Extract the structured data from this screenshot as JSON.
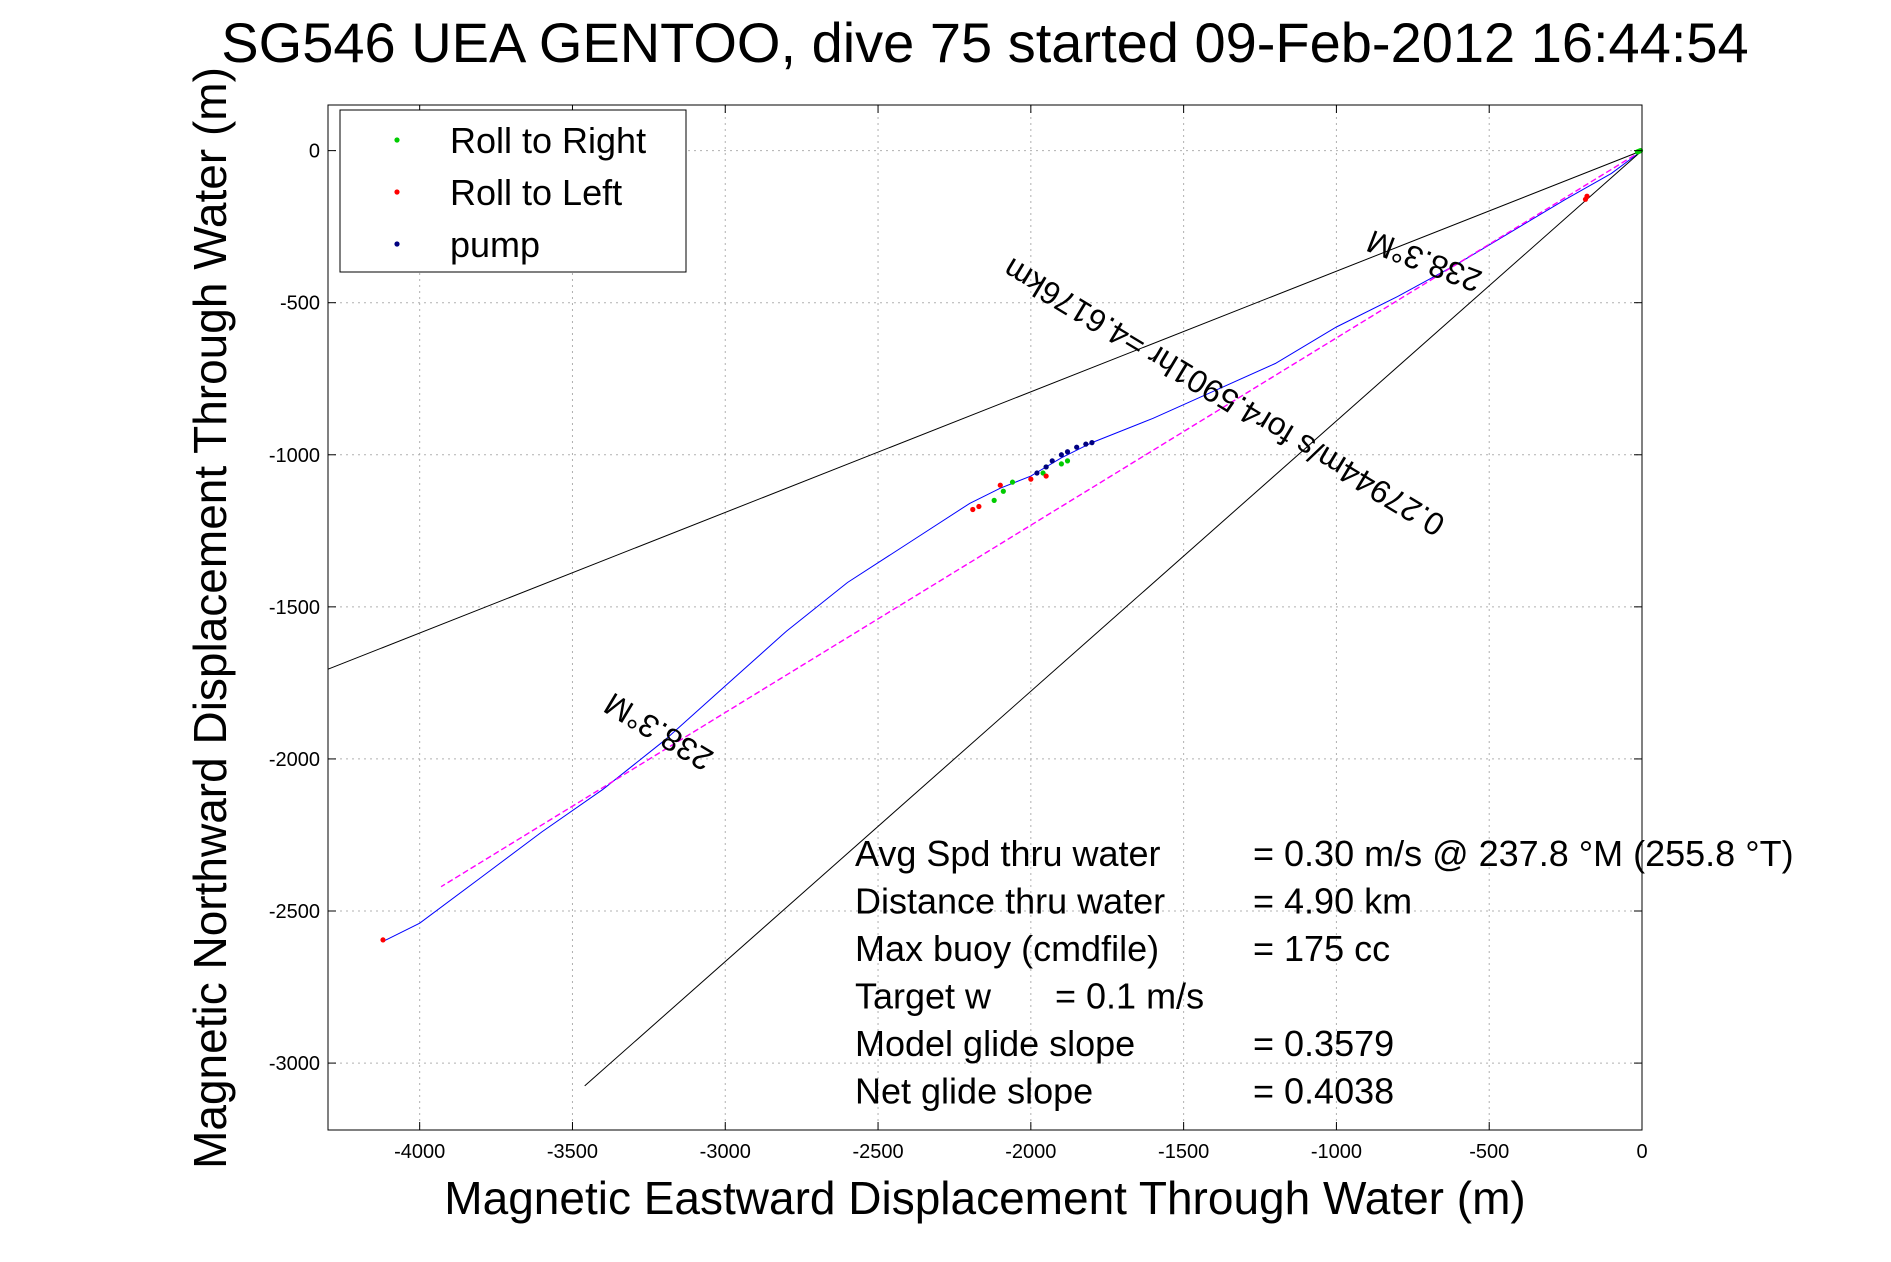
{
  "chart_data": {
    "type": "line",
    "title": "SG546 UEA GENTOO, dive 75 started 09-Feb-2012 16:44:54",
    "xlabel": "Magnetic Eastward Displacement Through Water (m)",
    "ylabel": "Magnetic Northward Displacement Through Water (m)",
    "xlim": [
      -4300,
      0
    ],
    "ylim": [
      -3220,
      150
    ],
    "xticks": [
      -4000,
      -3500,
      -3000,
      -2500,
      -2000,
      -1500,
      -1000,
      -500,
      0
    ],
    "yticks": [
      0,
      -500,
      -1000,
      -1500,
      -2000,
      -2500,
      -3000
    ],
    "xtick_labels": [
      "-4000",
      "-3500",
      "-3000",
      "-2500",
      "-2000",
      "-1500",
      "-1000",
      "-500",
      "0"
    ],
    "ytick_labels": [
      "0",
      "-500",
      "-1000",
      "-1500",
      "-2000",
      "-2500",
      "-3000"
    ],
    "grid": true,
    "legend": {
      "placement": "top-left",
      "entries": [
        {
          "label": "Roll to Right",
          "color": "#00cc00"
        },
        {
          "label": "Roll to Left",
          "color": "#ff0000"
        },
        {
          "label": "pump",
          "color": "#000080"
        }
      ]
    },
    "series": [
      {
        "key": "track",
        "style": "line",
        "color": "#0000ff",
        "x": [
          0,
          -100,
          -250,
          -400,
          -600,
          -800,
          -1000,
          -1200,
          -1400,
          -1600,
          -1800,
          -1900,
          -2000,
          -2100,
          -2200,
          -2400,
          -2600,
          -2800,
          -3000,
          -3200,
          -3400,
          -3600,
          -3800,
          -4000,
          -4120
        ],
        "y": [
          0,
          -75,
          -160,
          -250,
          -370,
          -480,
          -580,
          -700,
          -790,
          -880,
          -960,
          -1010,
          -1070,
          -1110,
          -1160,
          -1290,
          -1420,
          -1580,
          -1760,
          -1940,
          -2100,
          -2240,
          -2390,
          -2540,
          -2600
        ]
      },
      {
        "key": "mean-track",
        "style": "dashed",
        "color": "#ff00ff",
        "x": [
          0,
          -3930
        ],
        "y": [
          0,
          -2420
        ]
      },
      {
        "key": "cone-upper",
        "style": "line",
        "color": "#000000",
        "x": [
          0,
          -4300
        ],
        "y": [
          0,
          -1705
        ]
      },
      {
        "key": "cone-lower",
        "style": "line",
        "color": "#000000",
        "x": [
          0,
          -3460
        ],
        "y": [
          0,
          -3075
        ]
      },
      {
        "key": "roll-right",
        "style": "points",
        "color": "#00cc00",
        "x": [
          -5,
          -10,
          -15,
          -2120,
          -2090,
          -2060,
          -1960,
          -1950,
          -1900,
          -1880
        ],
        "y": [
          0,
          -2,
          -4,
          -1150,
          -1120,
          -1090,
          -1060,
          -1040,
          -1030,
          -1020
        ]
      },
      {
        "key": "roll-left",
        "style": "points",
        "color": "#ff0000",
        "x": [
          -180,
          -185,
          -2170,
          -2190,
          -2100,
          -2000,
          -1950,
          -4120
        ],
        "y": [
          -150,
          -160,
          -1170,
          -1180,
          -1100,
          -1080,
          -1070,
          -2595
        ]
      },
      {
        "key": "pump",
        "style": "points",
        "color": "#000080",
        "x": [
          -1800,
          -1820,
          -1850,
          -1880,
          -1900,
          -1930,
          -1950,
          -1980
        ],
        "y": [
          -960,
          -965,
          -975,
          -990,
          -1000,
          -1020,
          -1040,
          -1060
        ]
      }
    ],
    "annotations": [
      {
        "key": "heading-upper",
        "text": "238.3°M",
        "x": -700,
        "y": -330,
        "angle_deg": 201
      },
      {
        "key": "speed",
        "text": "0.27944m/s for4.5901hr =4.6176km",
        "x": -1350,
        "y": -780,
        "angle_deg": 211
      },
      {
        "key": "heading-lower",
        "text": "238.3°M",
        "x": -3200,
        "y": -1880,
        "angle_deg": 211
      }
    ],
    "stats": [
      {
        "label": "Avg Spd thru water",
        "value": "=  0.30 m/s @ 237.8 °M (255.8 °T)"
      },
      {
        "label": "Distance thru water",
        "value": "=  4.90 km"
      },
      {
        "label": "Max buoy (cmdfile)",
        "value": "= 175 cc"
      },
      {
        "label": "Target w",
        "value": "= 0.1 m/s"
      },
      {
        "label": "Model glide slope",
        "value": "= 0.3579"
      },
      {
        "label": "Net glide slope",
        "value": "= 0.4038"
      }
    ]
  }
}
